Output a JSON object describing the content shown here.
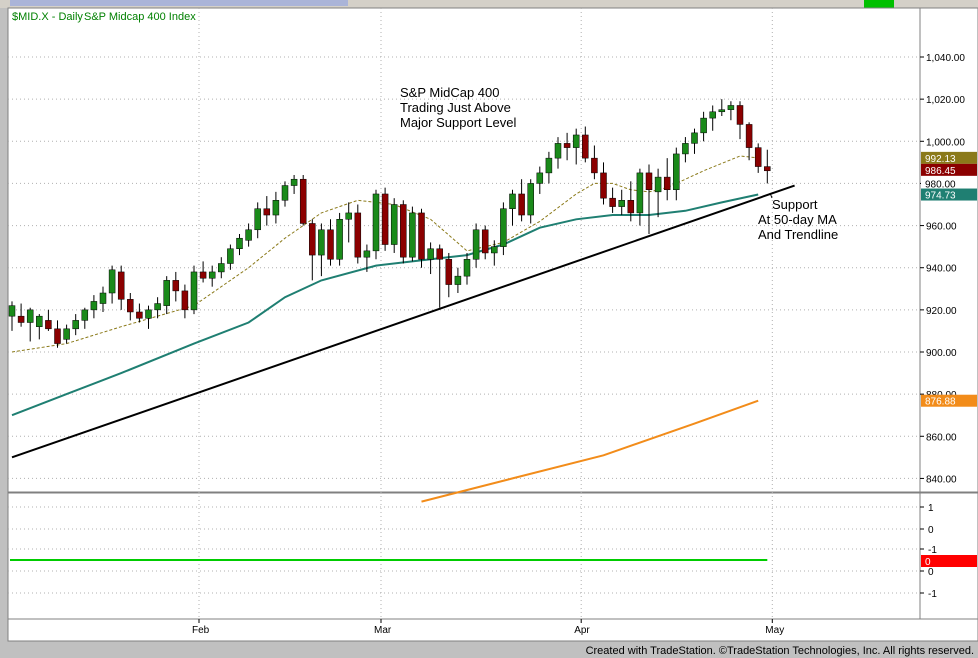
{
  "chart_header": {
    "symbol_label": "$MID.X - Daily",
    "index_name": "S&P Midcap 400 Index"
  },
  "annotations": [
    {
      "lines": [
        "S&P MidCap 400",
        "Trading Just Above",
        "Major Support Level"
      ]
    },
    {
      "lines": [
        "Support",
        "At 50-day MA",
        "And Trendline"
      ]
    }
  ],
  "footer_text": "Created with TradeStation. ©TradeStation Technologies, Inc. All rights reserved.",
  "colors": {
    "up_candle": "#1a8a1a",
    "down_candle": "#8b0000",
    "ma20": "#8b7a1a",
    "ma50": "#1f7f72",
    "ma200": "#f28c1a",
    "trendline": "#000000",
    "indicator_line": "#00cc00",
    "price_axis_bg": "#ffffff"
  },
  "chart_data": {
    "type": "candlestick",
    "interval": "Daily",
    "ylim": [
      826,
      1050
    ],
    "y_ticks": [
      "1,040.00",
      "1,020.00",
      "1,000.00",
      "980.00",
      "960.00",
      "940.00",
      "920.00",
      "900.00",
      "880.00",
      "860.00",
      "840.00"
    ],
    "x_labels": [
      {
        "label": "Feb",
        "bar": 20
      },
      {
        "label": "Mar",
        "bar": 40
      },
      {
        "label": "Apr",
        "bar": 62
      },
      {
        "label": "May",
        "bar": 83
      }
    ],
    "ohlc": [
      [
        917,
        924,
        910,
        922
      ],
      [
        917,
        923,
        912,
        914
      ],
      [
        914,
        921,
        905,
        920
      ],
      [
        912,
        918,
        906,
        917
      ],
      [
        915,
        920,
        910,
        911
      ],
      [
        911,
        915,
        902,
        904
      ],
      [
        906,
        913,
        904,
        911
      ],
      [
        911,
        918,
        908,
        915
      ],
      [
        915,
        921,
        911,
        920
      ],
      [
        920,
        927,
        916,
        924
      ],
      [
        923,
        931,
        919,
        928
      ],
      [
        928,
        941,
        923,
        939
      ],
      [
        938,
        941,
        920,
        925
      ],
      [
        925,
        928,
        915,
        919
      ],
      [
        919,
        923,
        914,
        916
      ],
      [
        916,
        922,
        911,
        920
      ],
      [
        920,
        926,
        916,
        923
      ],
      [
        922,
        936,
        918,
        934
      ],
      [
        934,
        938,
        924,
        929
      ],
      [
        929,
        932,
        916,
        920
      ],
      [
        920,
        941,
        918,
        938
      ],
      [
        938,
        943,
        933,
        935
      ],
      [
        935,
        941,
        931,
        938
      ],
      [
        938,
        945,
        935,
        942
      ],
      [
        942,
        951,
        939,
        949
      ],
      [
        949,
        956,
        946,
        954
      ],
      [
        953,
        961,
        950,
        958
      ],
      [
        958,
        971,
        954,
        968
      ],
      [
        968,
        974,
        960,
        965
      ],
      [
        965,
        976,
        961,
        972
      ],
      [
        972,
        981,
        969,
        979
      ],
      [
        979,
        984,
        975,
        982
      ],
      [
        982,
        984,
        960,
        961
      ],
      [
        961,
        963,
        934,
        946
      ],
      [
        946,
        961,
        936,
        958
      ],
      [
        958,
        963,
        941,
        944
      ],
      [
        944,
        966,
        941,
        963
      ],
      [
        963,
        971,
        952,
        966
      ],
      [
        966,
        970,
        942,
        945
      ],
      [
        945,
        951,
        938,
        948
      ],
      [
        948,
        977,
        944,
        975
      ],
      [
        975,
        978,
        948,
        951
      ],
      [
        951,
        973,
        947,
        970
      ],
      [
        970,
        972,
        942,
        945
      ],
      [
        945,
        969,
        943,
        966
      ],
      [
        966,
        968,
        940,
        944
      ],
      [
        944,
        952,
        937,
        949
      ],
      [
        949,
        951,
        921,
        944
      ],
      [
        944,
        947,
        926,
        932
      ],
      [
        932,
        940,
        928,
        936
      ],
      [
        936,
        947,
        932,
        944
      ],
      [
        944,
        961,
        940,
        958
      ],
      [
        958,
        960,
        944,
        947
      ],
      [
        947,
        953,
        941,
        950
      ],
      [
        950,
        971,
        946,
        968
      ],
      [
        968,
        977,
        960,
        975
      ],
      [
        975,
        982,
        962,
        965
      ],
      [
        965,
        982,
        961,
        980
      ],
      [
        980,
        988,
        975,
        985
      ],
      [
        985,
        995,
        980,
        992
      ],
      [
        992,
        1002,
        987,
        999
      ],
      [
        999,
        1004,
        991,
        997
      ],
      [
        997,
        1006,
        989,
        1003
      ],
      [
        1003,
        1007,
        990,
        992
      ],
      [
        992,
        998,
        982,
        985
      ],
      [
        985,
        990,
        970,
        973
      ],
      [
        973,
        978,
        966,
        969
      ],
      [
        969,
        977,
        965,
        972
      ],
      [
        972,
        981,
        962,
        966
      ],
      [
        966,
        987,
        960,
        985
      ],
      [
        985,
        989,
        956,
        977
      ],
      [
        976,
        987,
        964,
        983
      ],
      [
        983,
        992,
        972,
        977
      ],
      [
        977,
        997,
        972,
        994
      ],
      [
        994,
        1002,
        990,
        999
      ],
      [
        999,
        1006,
        994,
        1004
      ],
      [
        1004,
        1014,
        1000,
        1011
      ],
      [
        1011,
        1017,
        1005,
        1014
      ],
      [
        1014,
        1020,
        1012,
        1015
      ],
      [
        1015,
        1019,
        1010,
        1017
      ],
      [
        1017,
        1019,
        1001,
        1008
      ],
      [
        1008,
        1009,
        991,
        997
      ],
      [
        997,
        999,
        985,
        988
      ],
      [
        988,
        996,
        980,
        986
      ]
    ],
    "series": [
      {
        "name": "20-day MA",
        "last_value": "992.13",
        "points": [
          [
            0,
            900
          ],
          [
            6,
            904
          ],
          [
            12,
            912
          ],
          [
            20,
            922
          ],
          [
            26,
            940
          ],
          [
            30,
            954
          ],
          [
            34,
            966
          ],
          [
            38,
            972
          ],
          [
            42,
            970
          ],
          [
            46,
            963
          ],
          [
            50,
            948
          ],
          [
            54,
            952
          ],
          [
            58,
            962
          ],
          [
            62,
            975
          ],
          [
            64,
            980
          ],
          [
            66,
            980
          ],
          [
            68,
            977
          ],
          [
            70,
            976
          ],
          [
            72,
            978
          ],
          [
            76,
            986
          ],
          [
            80,
            993
          ],
          [
            82,
            992.13
          ]
        ]
      },
      {
        "name": "50-day MA",
        "last_value": "974.73",
        "points": [
          [
            0,
            870
          ],
          [
            6,
            880
          ],
          [
            12,
            890
          ],
          [
            20,
            904
          ],
          [
            26,
            914
          ],
          [
            30,
            926
          ],
          [
            34,
            934
          ],
          [
            40,
            941
          ],
          [
            46,
            944
          ],
          [
            50,
            946
          ],
          [
            54,
            951
          ],
          [
            58,
            959
          ],
          [
            62,
            963
          ],
          [
            66,
            965
          ],
          [
            70,
            965
          ],
          [
            74,
            967
          ],
          [
            78,
            971
          ],
          [
            82,
            974.73
          ]
        ]
      },
      {
        "name": "200-day MA",
        "last_value": "876.88",
        "points": [
          [
            45,
            829
          ],
          [
            55,
            840
          ],
          [
            65,
            851
          ],
          [
            75,
            866
          ],
          [
            82,
            876.88
          ]
        ]
      }
    ],
    "trendline": {
      "points": [
        [
          0,
          850
        ],
        [
          86,
          979
        ]
      ],
      "label_value": "980.00"
    },
    "last_close": "986.45",
    "indicator": {
      "y_ticks": [
        "1",
        "0",
        "-1",
        "0",
        "-1"
      ],
      "value": 0,
      "label": "0"
    }
  }
}
